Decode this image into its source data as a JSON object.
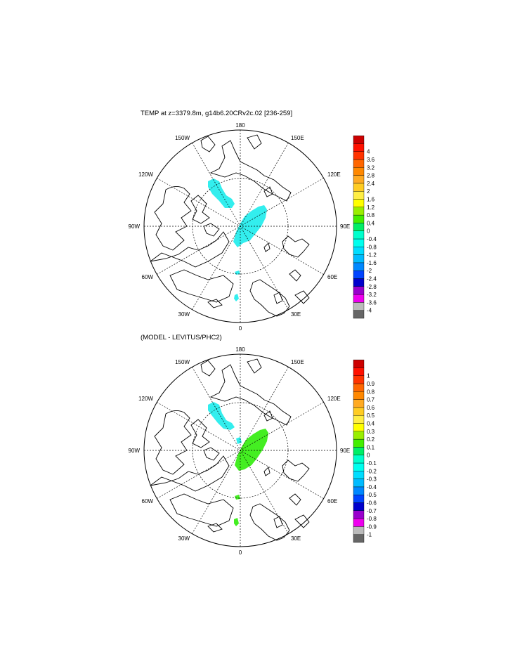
{
  "panels": [
    {
      "title": "TEMP at z=3379.8m, g14b6.20CRv2c.02 [236-259]",
      "lon_labels": [
        "180",
        "150E",
        "120E",
        "90E",
        "60E",
        "30E",
        "0",
        "30W",
        "60W",
        "90W",
        "120W",
        "150W"
      ],
      "colorbar": {
        "colors": [
          "#666666",
          "#bbbbbb",
          "#ee00ee",
          "#9900cc",
          "#0000cc",
          "#0044ff",
          "#0088ff",
          "#00bbff",
          "#00ddff",
          "#00ffee",
          "#00ffcc",
          "#00ee66",
          "#44ee00",
          "#99ee00",
          "#ffff00",
          "#ffee44",
          "#ffcc22",
          "#ffaa22",
          "#ff8800",
          "#ff6600",
          "#ff3300",
          "#ff1100",
          "#cc0000"
        ],
        "labels": [
          "-4",
          "-3.6",
          "-3.2",
          "-2.8",
          "-2.4",
          "-2",
          "-1.6",
          "-1.2",
          "-0.8",
          "-0.4",
          "0",
          "0.4",
          "0.8",
          "1.2",
          "1.6",
          "2",
          "2.4",
          "2.8",
          "3.2",
          "3.6",
          "4"
        ]
      },
      "patch_color": "#33eeee"
    },
    {
      "title": "(MODEL - LEVITUS/PHC2)",
      "lon_labels": [
        "180",
        "150E",
        "120E",
        "90E",
        "60E",
        "30E",
        "0",
        "30W",
        "60W",
        "90W",
        "120W",
        "150W"
      ],
      "colorbar": {
        "colors": [
          "#666666",
          "#bbbbbb",
          "#ee00ee",
          "#9900cc",
          "#0000cc",
          "#0044ff",
          "#0088ff",
          "#00bbff",
          "#00ddff",
          "#00ffee",
          "#00ffcc",
          "#00ee66",
          "#44ee00",
          "#99ee00",
          "#ffff00",
          "#ffee44",
          "#ffcc22",
          "#ffaa22",
          "#ff8800",
          "#ff6600",
          "#ff3300",
          "#ff1100",
          "#cc0000"
        ],
        "labels": [
          "-1",
          "-0.9",
          "-0.8",
          "-0.7",
          "-0.6",
          "-0.5",
          "-0.4",
          "-0.3",
          "-0.2",
          "-0.1",
          "0",
          "0.1",
          "0.2",
          "0.3",
          "0.4",
          "0.5",
          "0.6",
          "0.7",
          "0.8",
          "0.9",
          "1"
        ]
      },
      "patch_color_a": "#33eeee",
      "patch_color_b": "#44ee22"
    }
  ]
}
